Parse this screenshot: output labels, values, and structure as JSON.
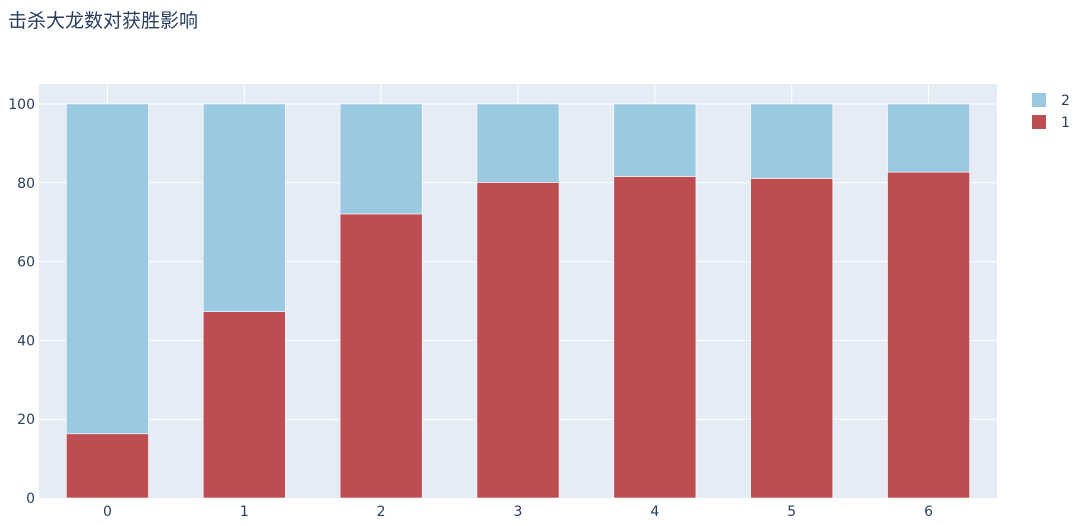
{
  "chart_data": {
    "type": "bar",
    "stacked": true,
    "title": "击杀大龙数对获胜影响",
    "xlabel": "",
    "ylabel": "",
    "categories": [
      "0",
      "1",
      "2",
      "3",
      "4",
      "5",
      "6"
    ],
    "series": [
      {
        "name": "1",
        "color": "#bd4d51",
        "values": [
          16.3,
          47.3,
          72.1,
          80.1,
          81.6,
          81.1,
          82.7
        ]
      },
      {
        "name": "2",
        "color": "#9ac9e2",
        "values": [
          83.7,
          52.7,
          27.9,
          19.9,
          18.4,
          18.9,
          17.3
        ]
      }
    ],
    "ylim": [
      0,
      100
    ],
    "yticks": [
      "0",
      "20",
      "40",
      "60",
      "80",
      "100"
    ],
    "grid": true,
    "legend": "top-right",
    "legend_order": [
      "2",
      "1"
    ]
  }
}
